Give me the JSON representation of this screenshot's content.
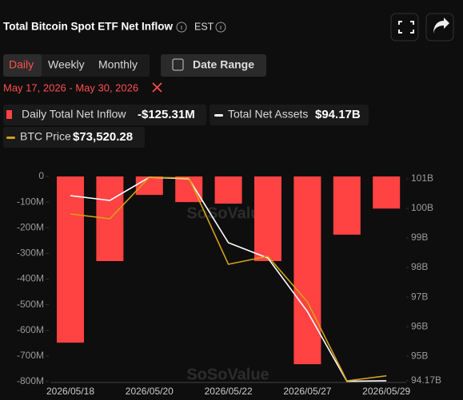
{
  "header": {
    "title": "Total Bitcoin Spot ETF Net Inflow",
    "timezone": "EST"
  },
  "tabs": [
    "Daily",
    "Weekly",
    "Monthly"
  ],
  "date_range_button": "Date Range",
  "date_range": "May 17, 2026 - May 30, 2026",
  "legend_values": [
    "-$125.31M",
    "$94.17B",
    "$73,520.28"
  ],
  "chart_data": {
    "type": "bar",
    "categories": [
      "2026/05/18",
      null,
      "2026/05/20",
      null,
      "2026/05/22",
      null,
      "2026/05/27",
      null,
      "2026/05/29"
    ],
    "series": [
      {
        "name": "Daily Total Net Inflow",
        "color": "#ff4242",
        "values": [
          -648,
          -330,
          -72,
          -100,
          -106,
          -330,
          -732,
          -227,
          -125.31
        ]
      },
      {
        "name": "Total Net Assets",
        "color": "#ffffff",
        "type": "line",
        "axis": "y2",
        "values": [
          100.43,
          100.27,
          101.05,
          101.0,
          98.84,
          98.32,
          96.51,
          94.15,
          94.17
        ]
      },
      {
        "name": "BTC Price",
        "color": "#d4a017",
        "type": "line",
        "axis": "y3",
        "values": [
          79600,
          79420,
          80980,
          80950,
          77710,
          78010,
          76300,
          73330,
          73520.28
        ]
      }
    ],
    "ylim": [
      -800,
      0
    ],
    "yticks": [
      0,
      {
        "value": -100,
        "label": "-100M"
      },
      {
        "value": -200,
        "label": "-200M"
      },
      {
        "value": -300,
        "label": "-300M"
      },
      {
        "value": -400,
        "label": "-400M"
      },
      {
        "value": -500,
        "label": "-500M"
      },
      {
        "value": -600,
        "label": "-600M"
      },
      {
        "value": -700,
        "label": "-700M"
      },
      {
        "value": -800,
        "label": "-800M"
      }
    ],
    "y2lim": [
      94.14,
      101.08
    ],
    "y2ticks": [
      {
        "value": 101,
        "label": "101B"
      },
      {
        "value": 100,
        "label": "100B"
      },
      {
        "value": 99,
        "label": "99B"
      },
      {
        "value": 98,
        "label": "98B"
      },
      {
        "value": 97,
        "label": "97B"
      },
      {
        "value": 96,
        "label": "96B"
      },
      {
        "value": 95,
        "label": "95B"
      },
      {
        "value": 94.17,
        "label": "94.17B"
      }
    ],
    "y3lim": [
      73300,
      81010
    ],
    "watermark": "SoSoValue"
  }
}
